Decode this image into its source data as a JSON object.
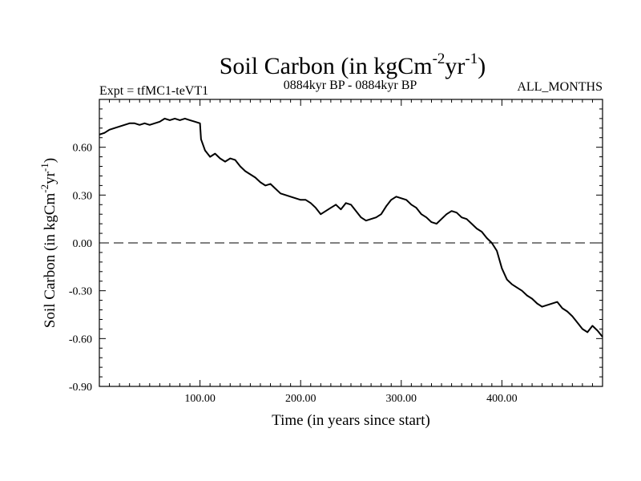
{
  "chart_data": {
    "type": "line",
    "title": {
      "main": "Soil Carbon (in kgCm",
      "exp1": "-2",
      "mid": "yr",
      "exp2": "-1",
      "end": ")"
    },
    "subtitle_left": "Expt = tfMC1-teVT1",
    "subtitle_center": "0884kyr BP - 0884kyr BP",
    "subtitle_right": "ALL_MONTHS",
    "xlabel": "Time (in years since start)",
    "ylabel": {
      "main": "Soil Carbon (in kgCm",
      "exp1": "-2",
      "mid": "yr",
      "exp2": "-1",
      "end": ")"
    },
    "xlim": [
      0,
      500
    ],
    "ylim": [
      -0.9,
      0.9
    ],
    "xticks": [
      100,
      200,
      300,
      400
    ],
    "xtick_labels": [
      "100.00",
      "200.00",
      "300.00",
      "400.00"
    ],
    "yticks": [
      0.6,
      0.3,
      0.0,
      -0.3,
      -0.6,
      -0.9
    ],
    "ytick_labels": [
      "0.60",
      "0.30",
      "0.00",
      "-0.30",
      "-0.60",
      "-0.90"
    ],
    "reference_line": {
      "y": 0,
      "style": "dashed"
    },
    "series": [
      {
        "name": "Soil Carbon",
        "points": [
          [
            0,
            0.68
          ],
          [
            5,
            0.69
          ],
          [
            10,
            0.71
          ],
          [
            15,
            0.72
          ],
          [
            20,
            0.73
          ],
          [
            25,
            0.74
          ],
          [
            30,
            0.75
          ],
          [
            35,
            0.75
          ],
          [
            40,
            0.74
          ],
          [
            45,
            0.75
          ],
          [
            50,
            0.74
          ],
          [
            55,
            0.75
          ],
          [
            60,
            0.76
          ],
          [
            65,
            0.78
          ],
          [
            70,
            0.77
          ],
          [
            75,
            0.78
          ],
          [
            80,
            0.77
          ],
          [
            85,
            0.78
          ],
          [
            90,
            0.77
          ],
          [
            95,
            0.76
          ],
          [
            100,
            0.75
          ],
          [
            101,
            0.65
          ],
          [
            105,
            0.58
          ],
          [
            110,
            0.54
          ],
          [
            115,
            0.56
          ],
          [
            120,
            0.53
          ],
          [
            125,
            0.51
          ],
          [
            130,
            0.53
          ],
          [
            135,
            0.52
          ],
          [
            140,
            0.48
          ],
          [
            145,
            0.45
          ],
          [
            150,
            0.43
          ],
          [
            155,
            0.41
          ],
          [
            160,
            0.38
          ],
          [
            165,
            0.36
          ],
          [
            170,
            0.37
          ],
          [
            175,
            0.34
          ],
          [
            180,
            0.31
          ],
          [
            185,
            0.3
          ],
          [
            190,
            0.29
          ],
          [
            195,
            0.28
          ],
          [
            200,
            0.27
          ],
          [
            205,
            0.27
          ],
          [
            210,
            0.25
          ],
          [
            215,
            0.22
          ],
          [
            220,
            0.18
          ],
          [
            225,
            0.2
          ],
          [
            230,
            0.22
          ],
          [
            235,
            0.24
          ],
          [
            240,
            0.21
          ],
          [
            245,
            0.25
          ],
          [
            250,
            0.24
          ],
          [
            255,
            0.2
          ],
          [
            260,
            0.16
          ],
          [
            265,
            0.14
          ],
          [
            270,
            0.15
          ],
          [
            275,
            0.16
          ],
          [
            280,
            0.18
          ],
          [
            285,
            0.23
          ],
          [
            290,
            0.27
          ],
          [
            295,
            0.29
          ],
          [
            300,
            0.28
          ],
          [
            305,
            0.27
          ],
          [
            310,
            0.24
          ],
          [
            315,
            0.22
          ],
          [
            320,
            0.18
          ],
          [
            325,
            0.16
          ],
          [
            330,
            0.13
          ],
          [
            335,
            0.12
          ],
          [
            340,
            0.15
          ],
          [
            345,
            0.18
          ],
          [
            350,
            0.2
          ],
          [
            355,
            0.19
          ],
          [
            360,
            0.16
          ],
          [
            365,
            0.15
          ],
          [
            370,
            0.12
          ],
          [
            375,
            0.09
          ],
          [
            380,
            0.07
          ],
          [
            385,
            0.03
          ],
          [
            390,
            0.0
          ],
          [
            395,
            -0.05
          ],
          [
            400,
            -0.16
          ],
          [
            405,
            -0.23
          ],
          [
            410,
            -0.26
          ],
          [
            415,
            -0.28
          ],
          [
            420,
            -0.3
          ],
          [
            425,
            -0.33
          ],
          [
            430,
            -0.35
          ],
          [
            435,
            -0.38
          ],
          [
            440,
            -0.4
          ],
          [
            445,
            -0.39
          ],
          [
            450,
            -0.38
          ],
          [
            455,
            -0.37
          ],
          [
            460,
            -0.41
          ],
          [
            465,
            -0.43
          ],
          [
            470,
            -0.46
          ],
          [
            475,
            -0.5
          ],
          [
            480,
            -0.54
          ],
          [
            485,
            -0.56
          ],
          [
            490,
            -0.52
          ],
          [
            495,
            -0.55
          ],
          [
            500,
            -0.59
          ]
        ]
      }
    ]
  }
}
